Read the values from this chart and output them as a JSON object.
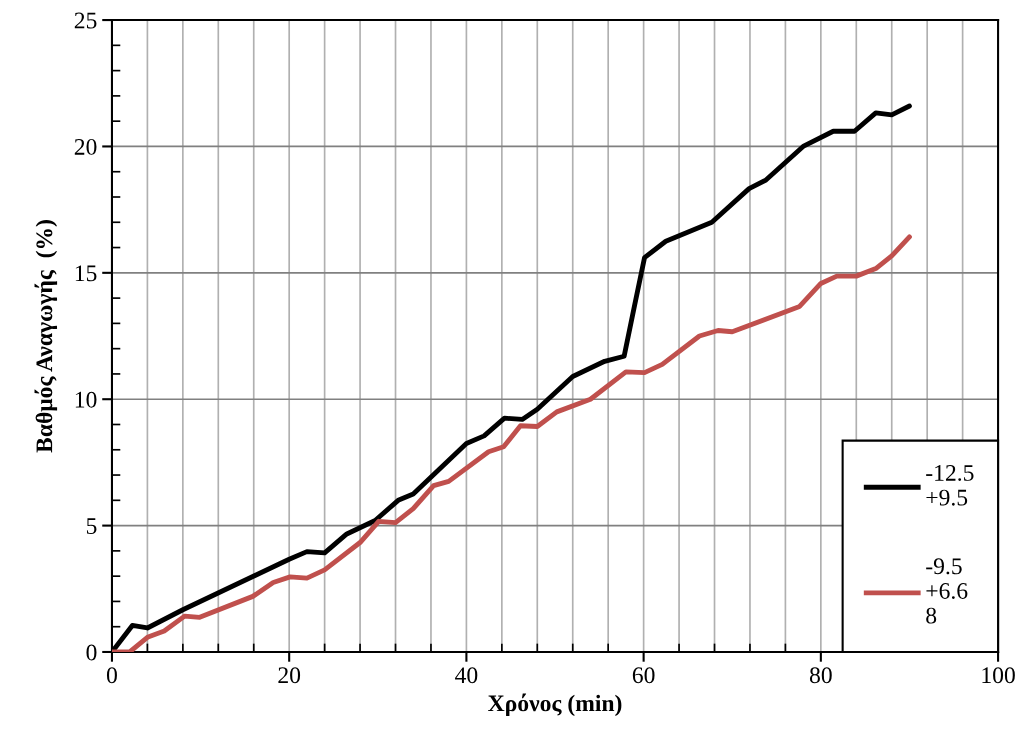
{
  "chart_data": {
    "type": "line",
    "xlabel": "Χρόνος (min)",
    "ylabel": "Βαθμός Αναγωγής  (%)",
    "xlim": [
      0,
      100
    ],
    "ylim": [
      0,
      25
    ],
    "xticks": [
      0,
      {
        "value": 4,
        "label": null
      },
      {
        "value": 8,
        "label": null
      },
      {
        "value": 12,
        "label": null
      },
      {
        "value": 16,
        "label": null
      },
      20,
      {
        "value": 24,
        "label": null
      },
      {
        "value": 28,
        "label": null
      },
      {
        "value": 32,
        "label": null
      },
      {
        "value": 36,
        "label": null
      },
      40,
      {
        "value": 44,
        "label": null
      },
      {
        "value": 48,
        "label": null
      },
      {
        "value": 52,
        "label": null
      },
      {
        "value": 56,
        "label": null
      },
      60,
      {
        "value": 64,
        "label": null
      },
      {
        "value": 68,
        "label": null
      },
      {
        "value": 72,
        "label": null
      },
      {
        "value": 76,
        "label": null
      },
      80,
      {
        "value": 84,
        "label": null
      },
      {
        "value": 88,
        "label": null
      },
      {
        "value": 92,
        "label": null
      },
      {
        "value": 96,
        "label": null
      },
      100
    ],
    "yticks": [
      0,
      {
        "value": 1,
        "label": null
      },
      {
        "value": 2,
        "label": null
      },
      {
        "value": 3,
        "label": null
      },
      {
        "value": 4,
        "label": null
      },
      5,
      {
        "value": 6,
        "label": null
      },
      {
        "value": 7,
        "label": null
      },
      {
        "value": 8,
        "label": null
      },
      {
        "value": 9,
        "label": null
      },
      10,
      {
        "value": 11,
        "label": null
      },
      {
        "value": 12,
        "label": null
      },
      {
        "value": 13,
        "label": null
      },
      {
        "value": 14,
        "label": null
      },
      15,
      {
        "value": 16,
        "label": null
      },
      {
        "value": 17,
        "label": null
      },
      {
        "value": 18,
        "label": null
      },
      {
        "value": 19,
        "label": null
      },
      20,
      {
        "value": 21,
        "label": null
      },
      {
        "value": 22,
        "label": null
      },
      {
        "value": 23,
        "label": null
      },
      {
        "value": 24,
        "label": null
      },
      25
    ],
    "grid": true,
    "legend": "bottom right",
    "marker": "none",
    "line_style": "solid",
    "series": [
      {
        "name": "-12.5\n+9.5",
        "color": "#000000",
        "x": [
          0,
          2.3,
          4,
          8,
          20,
          22,
          24,
          26.5,
          29.7,
          32.3,
          34,
          40,
          42,
          44.3,
          46.3,
          48,
          52,
          55.6,
          57.8,
          59,
          60.1,
          62.5,
          67.7,
          71.9,
          73.8,
          78,
          81.4,
          83.8,
          86.2,
          88,
          90
        ],
        "values": [
          0,
          1.05,
          0.95,
          1.67,
          3.67,
          3.97,
          3.92,
          4.67,
          5.2,
          6.0,
          6.25,
          8.25,
          8.55,
          9.25,
          9.2,
          9.6,
          10.9,
          11.5,
          11.7,
          13.75,
          15.6,
          16.25,
          17.0,
          18.33,
          18.67,
          20.0,
          20.6,
          20.6,
          21.33,
          21.25,
          21.6
        ]
      },
      {
        "name": "-9.5\n+6.6\n8",
        "color": "#c0504d",
        "x": [
          0,
          2,
          4,
          5.9,
          8.2,
          9.9,
          15.9,
          18.2,
          20.1,
          22,
          24,
          28,
          30.1,
          32,
          34,
          36.3,
          38,
          42.5,
          44.2,
          46.1,
          48,
          50.2,
          54,
          58,
          60.1,
          62.1,
          66.3,
          68.4,
          70,
          77.6,
          80,
          81.8,
          84,
          86.2,
          88,
          90
        ],
        "values": [
          0,
          0,
          0.58,
          0.83,
          1.42,
          1.37,
          2.2,
          2.75,
          2.97,
          2.92,
          3.25,
          4.33,
          5.17,
          5.12,
          5.67,
          6.58,
          6.75,
          7.92,
          8.12,
          8.95,
          8.92,
          9.5,
          10.0,
          11.08,
          11.05,
          11.38,
          12.5,
          12.72,
          12.67,
          13.67,
          14.58,
          14.87,
          14.87,
          15.17,
          15.67,
          16.42
        ]
      }
    ]
  }
}
